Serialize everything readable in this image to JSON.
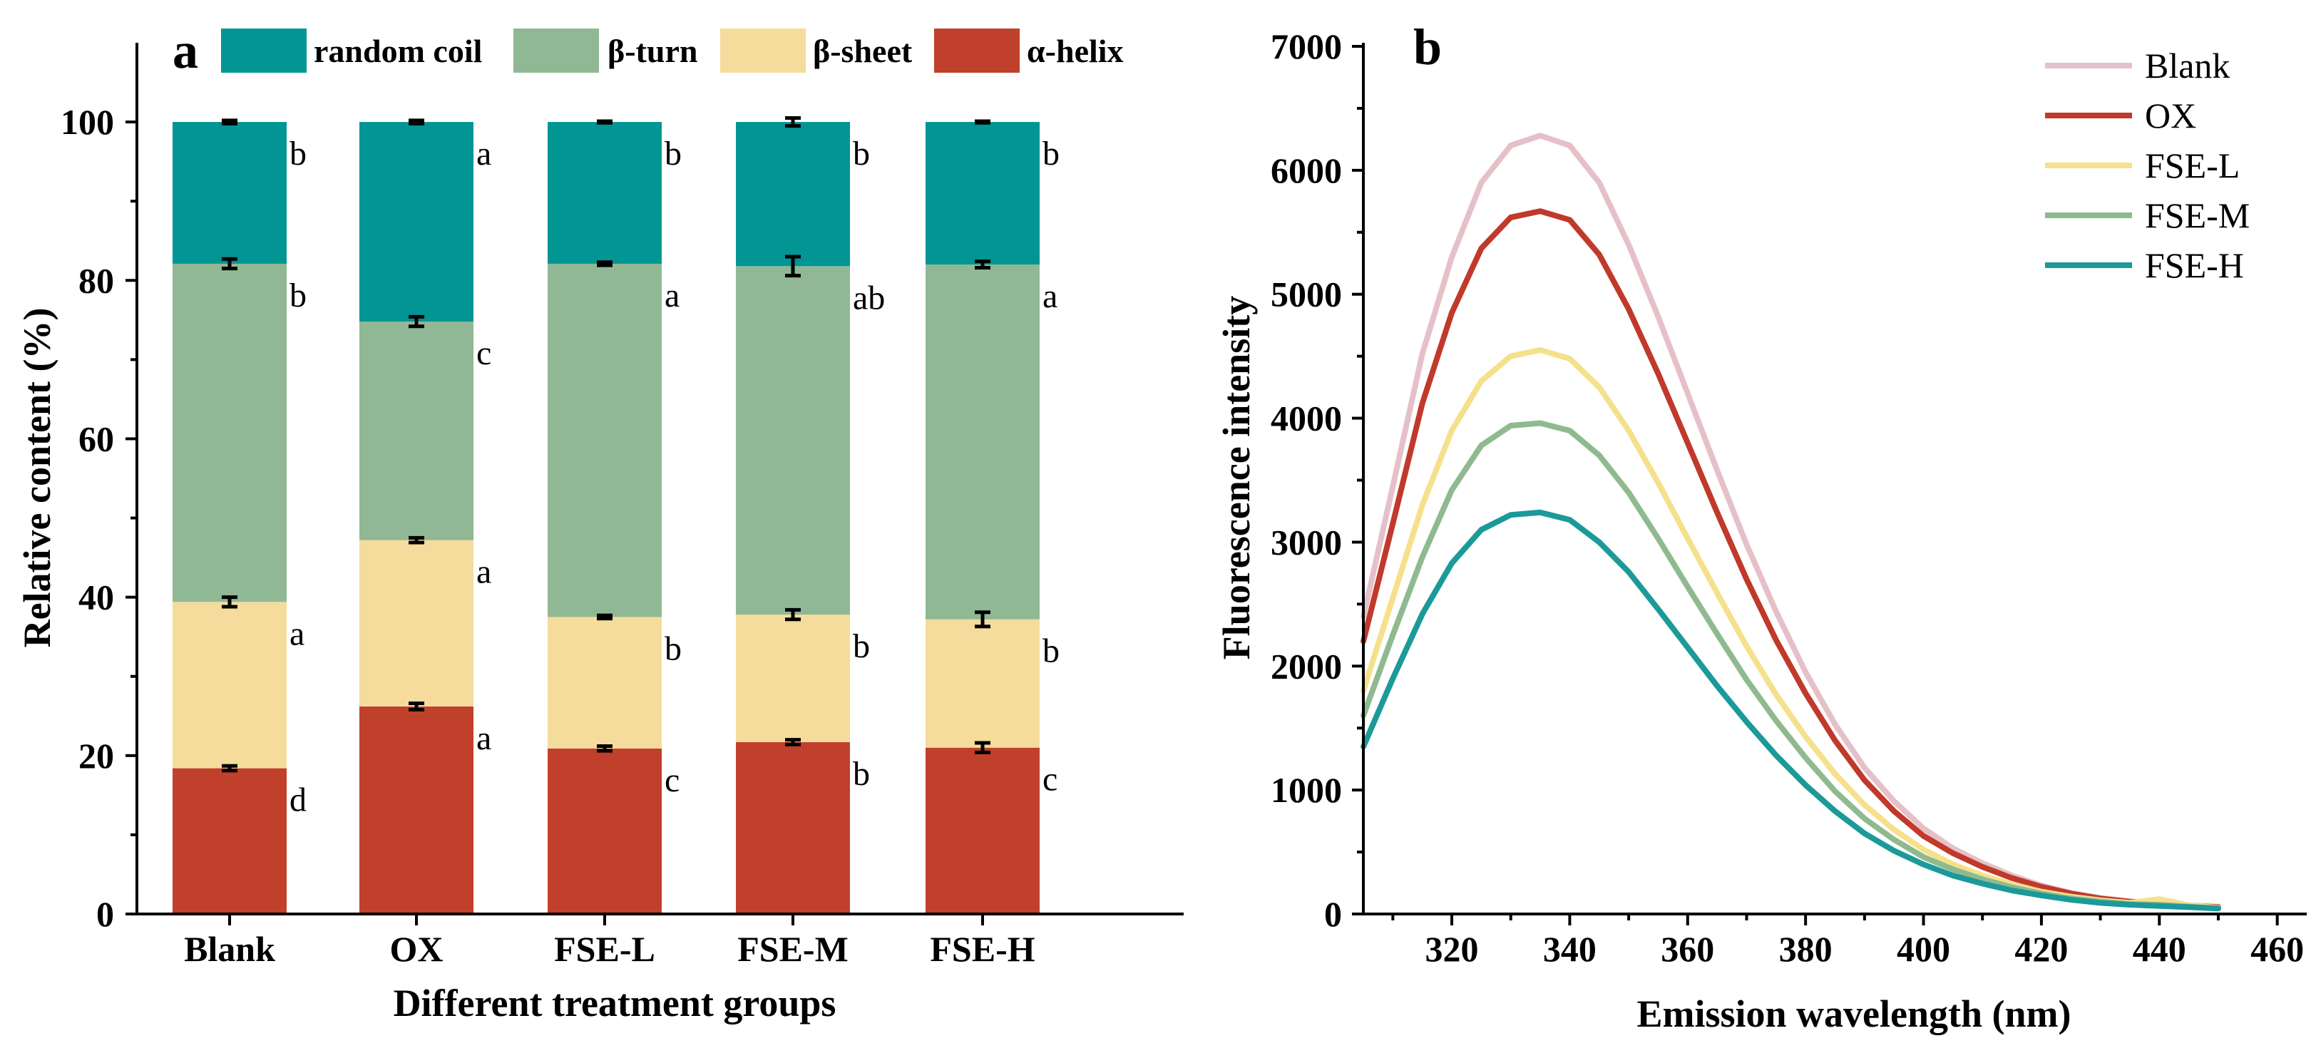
{
  "figure_colors": {
    "random_coil": "#019594",
    "beta_turn": "#91b894",
    "beta_sheet": "#f5dc9c",
    "alpha_helix": "#c0402c"
  },
  "chart_data": [
    {
      "panel": "a",
      "type": "bar",
      "stacked": true,
      "title": "",
      "xlabel": "Different treatment groups",
      "ylabel": "Relative content (%)",
      "ylim": [
        0,
        110
      ],
      "yticks": [
        0,
        20,
        40,
        60,
        80,
        100
      ],
      "categories": [
        "Blank",
        "OX",
        "FSE-L",
        "FSE-M",
        "FSE-H"
      ],
      "legend": [
        "random coil",
        "β-turn",
        "β-sheet",
        "α-helix"
      ],
      "legend_position": "top",
      "series": [
        {
          "name": "α-helix",
          "color": "#c0402c",
          "values": [
            18.4,
            26.2,
            20.9,
            21.7,
            21.0
          ],
          "errors": [
            0.3,
            0.4,
            0.3,
            0.3,
            0.6
          ],
          "letters": [
            "d",
            "a",
            "c",
            "b",
            "c"
          ]
        },
        {
          "name": "β-sheet",
          "color": "#f5dc9c",
          "values": [
            21.0,
            21.0,
            16.6,
            16.1,
            16.2
          ],
          "errors": [
            0.6,
            0.3,
            0.2,
            0.6,
            0.9
          ],
          "letters": [
            "a",
            "a",
            "b",
            "b",
            "b"
          ]
        },
        {
          "name": "β-turn",
          "color": "#91b894",
          "values": [
            42.7,
            27.6,
            44.6,
            44.0,
            44.8
          ],
          "errors": [
            0.6,
            0.6,
            0.2,
            1.2,
            0.4
          ],
          "letters": [
            "b",
            "c",
            "a",
            "ab",
            "a"
          ]
        },
        {
          "name": "random coil",
          "color": "#019594",
          "values": [
            17.9,
            25.2,
            17.9,
            18.2,
            18.0
          ],
          "errors": [
            0.2,
            0.2,
            0.1,
            0.5,
            0.1
          ],
          "letters": [
            "b",
            "a",
            "b",
            "b",
            "b"
          ]
        }
      ]
    },
    {
      "panel": "b",
      "type": "line",
      "title": "",
      "xlabel": "Emission wavelength (nm)",
      "ylabel": "Fluorescence intensity",
      "xlim": [
        305,
        465
      ],
      "ylim": [
        0,
        7000
      ],
      "xticks": [
        320,
        340,
        360,
        380,
        400,
        420,
        440,
        460
      ],
      "yticks": [
        0,
        1000,
        2000,
        3000,
        4000,
        5000,
        6000,
        7000
      ],
      "legend_position": "top-right",
      "x": [
        305,
        310,
        315,
        320,
        325,
        330,
        335,
        340,
        345,
        350,
        355,
        360,
        365,
        370,
        375,
        380,
        385,
        390,
        395,
        400,
        405,
        410,
        415,
        420,
        425,
        430,
        435,
        440,
        445,
        450
      ],
      "series": [
        {
          "name": "Blank",
          "color": "#e6c0c8",
          "values": [
            2400,
            3450,
            4520,
            5300,
            5900,
            6200,
            6280,
            6200,
            5900,
            5400,
            4820,
            4200,
            3580,
            2980,
            2440,
            1950,
            1530,
            1180,
            910,
            690,
            530,
            410,
            310,
            230,
            170,
            130,
            100,
            90,
            70,
            60
          ]
        },
        {
          "name": "OX",
          "color": "#c0392b",
          "values": [
            2200,
            3150,
            4120,
            4850,
            5370,
            5620,
            5670,
            5600,
            5320,
            4880,
            4360,
            3800,
            3240,
            2700,
            2210,
            1780,
            1400,
            1080,
            830,
            630,
            490,
            380,
            290,
            220,
            165,
            125,
            100,
            85,
            65,
            55
          ]
        },
        {
          "name": "FSE-L",
          "color": "#f5e08c",
          "values": [
            1800,
            2550,
            3300,
            3900,
            4300,
            4500,
            4550,
            4480,
            4250,
            3900,
            3480,
            3030,
            2590,
            2160,
            1770,
            1430,
            1130,
            880,
            680,
            520,
            400,
            310,
            240,
            180,
            140,
            110,
            90,
            120,
            70,
            50
          ]
        },
        {
          "name": "FSE-M",
          "color": "#8fba8f",
          "values": [
            1600,
            2250,
            2880,
            3420,
            3780,
            3940,
            3960,
            3900,
            3700,
            3400,
            3030,
            2640,
            2260,
            1890,
            1560,
            1260,
            990,
            770,
            600,
            460,
            360,
            280,
            215,
            165,
            125,
            100,
            80,
            75,
            60,
            45
          ]
        },
        {
          "name": "FSE-H",
          "color": "#1b9a99",
          "values": [
            1350,
            1900,
            2420,
            2830,
            3100,
            3220,
            3240,
            3180,
            3000,
            2760,
            2460,
            2150,
            1840,
            1550,
            1280,
            1040,
            830,
            650,
            510,
            400,
            310,
            245,
            190,
            150,
            115,
            90,
            75,
            65,
            55,
            45
          ]
        }
      ]
    }
  ]
}
